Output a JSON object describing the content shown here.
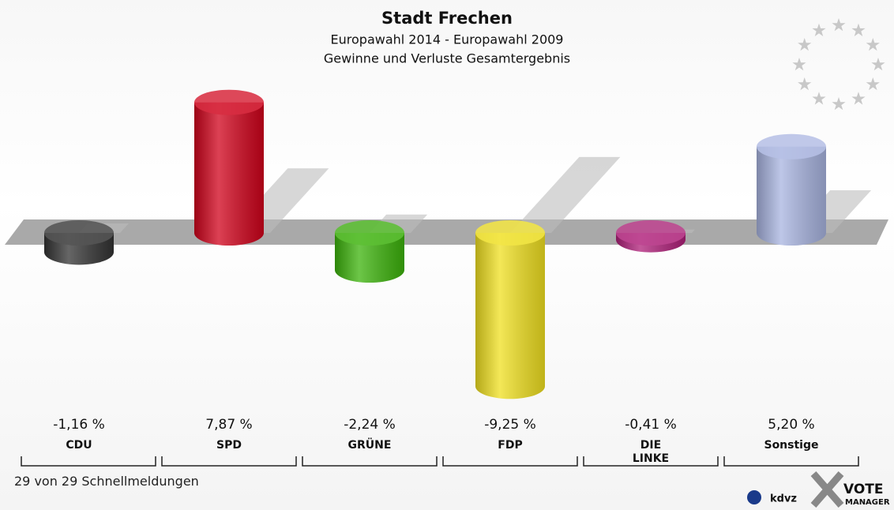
{
  "chart_data": {
    "type": "bar",
    "title": "Stadt Frechen",
    "subtitle": [
      "Europawahl 2014 - Europawahl 2009",
      "Gewinne und Verluste Gesamtergebnis"
    ],
    "categories": [
      "CDU",
      "SPD",
      "GRÜNE",
      "FDP",
      "DIE LINKE",
      "Sonstige"
    ],
    "values": [
      -1.16,
      7.87,
      -2.24,
      -9.25,
      -0.41,
      5.2
    ],
    "value_labels": [
      "-1,16 %",
      "7,87 %",
      "-2,24 %",
      "-9,25 %",
      "-0,41 %",
      "5,20 %"
    ],
    "colors": [
      "#333333",
      "#d0021b",
      "#3cb30b",
      "#f0e020",
      "#b0207a",
      "#a8b4e0"
    ],
    "ylim": [
      -10,
      10
    ]
  },
  "footer": "29 von 29 Schnellmeldungen",
  "logos": [
    "kdvz",
    "VOTE",
    "MANAGER"
  ]
}
